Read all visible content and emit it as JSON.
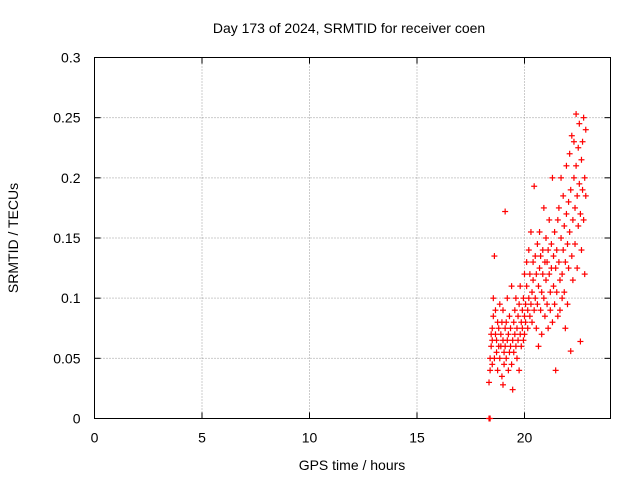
{
  "chart_data": {
    "type": "scatter",
    "title": "Day 173 of 2024, SRMTID for receiver coen",
    "xlabel": "GPS time / hours",
    "ylabel": "SRMTID / TECUs",
    "xlim": [
      0,
      24
    ],
    "ylim": [
      0,
      0.3
    ],
    "x_ticks": [
      0,
      5,
      10,
      15,
      20
    ],
    "y_ticks": [
      0,
      0.05,
      0.1,
      0.15,
      0.2,
      0.25,
      0.3
    ],
    "grid": true,
    "marker": "+",
    "color": "#ff0000",
    "series": [
      {
        "name": "coen",
        "points": [
          [
            18.35,
            0.0
          ],
          [
            18.4,
            0.0
          ],
          [
            18.35,
            0.03
          ],
          [
            18.4,
            0.04
          ],
          [
            18.4,
            0.05
          ],
          [
            18.45,
            0.07
          ],
          [
            18.45,
            0.06
          ],
          [
            18.5,
            0.045
          ],
          [
            18.5,
            0.065
          ],
          [
            18.5,
            0.075
          ],
          [
            18.55,
            0.085
          ],
          [
            18.55,
            0.1
          ],
          [
            18.6,
            0.135
          ],
          [
            18.6,
            0.05
          ],
          [
            18.65,
            0.07
          ],
          [
            18.65,
            0.09
          ],
          [
            18.7,
            0.055
          ],
          [
            18.7,
            0.065
          ],
          [
            18.75,
            0.08
          ],
          [
            18.75,
            0.04
          ],
          [
            18.8,
            0.06
          ],
          [
            18.8,
            0.075
          ],
          [
            18.85,
            0.095
          ],
          [
            18.85,
            0.05
          ],
          [
            18.9,
            0.07
          ],
          [
            18.9,
            0.06
          ],
          [
            18.95,
            0.035
          ],
          [
            18.95,
            0.08
          ],
          [
            19.0,
            0.065
          ],
          [
            19.0,
            0.09
          ],
          [
            19.0,
            0.028
          ],
          [
            19.05,
            0.045
          ],
          [
            19.05,
            0.055
          ],
          [
            19.1,
            0.075
          ],
          [
            19.1,
            0.06
          ],
          [
            19.1,
            0.172
          ],
          [
            19.15,
            0.08
          ],
          [
            19.15,
            0.05
          ],
          [
            19.2,
            0.065
          ],
          [
            19.2,
            0.1
          ],
          [
            19.25,
            0.07
          ],
          [
            19.25,
            0.04
          ],
          [
            19.3,
            0.055
          ],
          [
            19.3,
            0.085
          ],
          [
            19.35,
            0.06
          ],
          [
            19.35,
            0.075
          ],
          [
            19.4,
            0.11
          ],
          [
            19.4,
            0.045
          ],
          [
            19.45,
            0.065
          ],
          [
            19.45,
            0.024
          ],
          [
            19.5,
            0.08
          ],
          [
            19.5,
            0.055
          ],
          [
            19.55,
            0.07
          ],
          [
            19.55,
            0.09
          ],
          [
            19.6,
            0.06
          ],
          [
            19.6,
            0.1
          ],
          [
            19.65,
            0.05
          ],
          [
            19.65,
            0.075
          ],
          [
            19.7,
            0.085
          ],
          [
            19.7,
            0.065
          ],
          [
            19.75,
            0.04
          ],
          [
            19.75,
            0.095
          ],
          [
            19.8,
            0.07
          ],
          [
            19.8,
            0.11
          ],
          [
            19.85,
            0.08
          ],
          [
            19.85,
            0.06
          ],
          [
            19.9,
            0.09
          ],
          [
            19.9,
            0.075
          ],
          [
            19.95,
            0.1
          ],
          [
            19.95,
            0.065
          ],
          [
            20.0,
            0.085
          ],
          [
            20.0,
            0.12
          ],
          [
            20.0,
            0.07
          ],
          [
            20.05,
            0.095
          ],
          [
            20.05,
            0.08
          ],
          [
            20.1,
            0.11
          ],
          [
            20.1,
            0.13
          ],
          [
            20.15,
            0.09
          ],
          [
            20.15,
            0.075
          ],
          [
            20.2,
            0.1
          ],
          [
            20.2,
            0.14
          ],
          [
            20.25,
            0.085
          ],
          [
            20.25,
            0.12
          ],
          [
            20.3,
            0.095
          ],
          [
            20.3,
            0.155
          ],
          [
            20.35,
            0.105
          ],
          [
            20.35,
            0.08
          ],
          [
            20.4,
            0.13
          ],
          [
            20.4,
            0.115
          ],
          [
            20.45,
            0.09
          ],
          [
            20.45,
            0.193
          ],
          [
            20.5,
            0.1
          ],
          [
            20.5,
            0.135
          ],
          [
            20.55,
            0.12
          ],
          [
            20.55,
            0.075
          ],
          [
            20.6,
            0.145
          ],
          [
            20.6,
            0.095
          ],
          [
            20.65,
            0.11
          ],
          [
            20.65,
            0.06
          ],
          [
            20.7,
            0.125
          ],
          [
            20.7,
            0.155
          ],
          [
            20.75,
            0.09
          ],
          [
            20.75,
            0.135
          ],
          [
            20.8,
            0.105
          ],
          [
            20.8,
            0.07
          ],
          [
            20.85,
            0.14
          ],
          [
            20.85,
            0.12
          ],
          [
            20.9,
            0.175
          ],
          [
            20.9,
            0.1
          ],
          [
            20.95,
            0.13
          ],
          [
            20.95,
            0.085
          ],
          [
            21.0,
            0.115
          ],
          [
            21.0,
            0.15
          ],
          [
            21.05,
            0.095
          ],
          [
            21.05,
            0.13
          ],
          [
            21.1,
            0.14
          ],
          [
            21.1,
            0.075
          ],
          [
            21.15,
            0.12
          ],
          [
            21.15,
            0.165
          ],
          [
            21.2,
            0.105
          ],
          [
            21.2,
            0.09
          ],
          [
            21.25,
            0.145
          ],
          [
            21.25,
            0.125
          ],
          [
            21.3,
            0.2
          ],
          [
            21.3,
            0.08
          ],
          [
            21.35,
            0.135
          ],
          [
            21.35,
            0.11
          ],
          [
            21.4,
            0.155
          ],
          [
            21.4,
            0.095
          ],
          [
            21.45,
            0.04
          ],
          [
            21.45,
            0.125
          ],
          [
            21.5,
            0.14
          ],
          [
            21.5,
            0.105
          ],
          [
            21.55,
            0.165
          ],
          [
            21.55,
            0.085
          ],
          [
            21.6,
            0.13
          ],
          [
            21.6,
            0.175
          ],
          [
            21.65,
            0.115
          ],
          [
            21.65,
            0.09
          ],
          [
            21.7,
            0.15
          ],
          [
            21.7,
            0.2
          ],
          [
            21.75,
            0.12
          ],
          [
            21.75,
            0.1
          ],
          [
            21.8,
            0.185
          ],
          [
            21.8,
            0.14
          ],
          [
            21.85,
            0.105
          ],
          [
            21.85,
            0.16
          ],
          [
            21.9,
            0.13
          ],
          [
            21.9,
            0.075
          ],
          [
            21.95,
            0.17
          ],
          [
            21.95,
            0.21
          ],
          [
            22.0,
            0.145
          ],
          [
            22.0,
            0.095
          ],
          [
            22.05,
            0.18
          ],
          [
            22.05,
            0.125
          ],
          [
            22.1,
            0.22
          ],
          [
            22.1,
            0.155
          ],
          [
            22.15,
            0.056
          ],
          [
            22.15,
            0.19
          ],
          [
            22.2,
            0.135
          ],
          [
            22.2,
            0.235
          ],
          [
            22.25,
            0.165
          ],
          [
            22.25,
            0.115
          ],
          [
            22.3,
            0.2
          ],
          [
            22.3,
            0.23
          ],
          [
            22.35,
            0.175
          ],
          [
            22.35,
            0.145
          ],
          [
            22.4,
            0.21
          ],
          [
            22.4,
            0.253
          ],
          [
            22.45,
            0.185
          ],
          [
            22.45,
            0.125
          ],
          [
            22.5,
            0.225
          ],
          [
            22.5,
            0.16
          ],
          [
            22.55,
            0.195
          ],
          [
            22.55,
            0.245
          ],
          [
            22.6,
            0.17
          ],
          [
            22.6,
            0.064
          ],
          [
            22.65,
            0.215
          ],
          [
            22.65,
            0.14
          ],
          [
            22.7,
            0.23
          ],
          [
            22.7,
            0.19
          ],
          [
            22.75,
            0.25
          ],
          [
            22.75,
            0.165
          ],
          [
            22.8,
            0.2
          ],
          [
            22.8,
            0.12
          ],
          [
            22.85,
            0.24
          ],
          [
            22.85,
            0.185
          ]
        ]
      }
    ]
  }
}
